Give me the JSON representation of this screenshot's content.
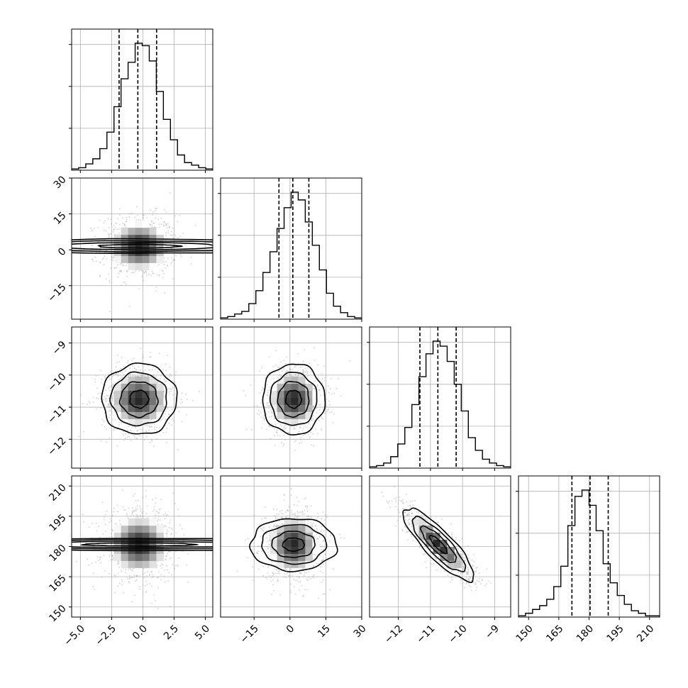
{
  "chart_data": {
    "type": "corner",
    "params": [
      {
        "hist": [
          1,
          2,
          5,
          9,
          17,
          30,
          50,
          72,
          85,
          100,
          98,
          86,
          62,
          40,
          24,
          12,
          6,
          4,
          2,
          1
        ],
        "quantiles": [
          -1.9,
          -0.4,
          1.1
        ],
        "range": [
          -5.7,
          5.6
        ],
        "ticks": [
          -5.0,
          -2.5,
          0.0,
          2.5,
          5.0
        ],
        "tick_labels": [
          "−5.0",
          "−2.5",
          "0.0",
          "2.5",
          "5.0"
        ],
        "mean": -0.3,
        "sd": 1.5
      },
      {
        "hist": [
          1,
          2,
          4,
          6,
          12,
          22,
          36,
          52,
          70,
          86,
          98,
          92,
          75,
          57,
          38,
          20,
          10,
          5,
          2,
          1
        ],
        "quantiles": [
          -4.6,
          1.2,
          7.9
        ],
        "range": [
          -29,
          30
        ],
        "ticks": [
          -15,
          0,
          15,
          30
        ],
        "tick_labels": [
          "−15",
          "0",
          "15",
          "30"
        ],
        "mean": 1.5,
        "sd": 6.5
      },
      {
        "hist": [
          1,
          2,
          4,
          9,
          19,
          32,
          50,
          72,
          90,
          100,
          96,
          84,
          66,
          45,
          24,
          14,
          7,
          4,
          2,
          1
        ],
        "quantiles": [
          -11.33,
          -10.77,
          -10.2
        ],
        "range": [
          -12.9,
          -8.5
        ],
        "ticks": [
          -12,
          -11,
          -10,
          -9
        ],
        "tick_labels": [
          "−12",
          "−11",
          "−10",
          "−9"
        ],
        "mean": -10.75,
        "sd": 0.55
      },
      {
        "hist": [
          1,
          3,
          6,
          9,
          14,
          24,
          40,
          72,
          95,
          100,
          88,
          68,
          42,
          27,
          17,
          10,
          5,
          3,
          1,
          1
        ],
        "quantiles": [
          171.5,
          180.5,
          189.5
        ],
        "range": [
          145,
          215
        ],
        "ticks": [
          150,
          165,
          180,
          195,
          210
        ],
        "tick_labels": [
          "150",
          "165",
          "180",
          "195",
          "210"
        ],
        "mean": 181,
        "sd": 9
      }
    ],
    "correlations": {
      "1-0": 0.0,
      "2-0": 0.0,
      "2-1": 0.0,
      "3-0": 0.0,
      "3-1": 0.0,
      "3-2": -0.85
    },
    "contour_levels_sigma": [
      0.5,
      1.0,
      1.5,
      2.0
    ],
    "colors": {
      "ink": "#000000",
      "grid": "#b0b0b0",
      "points": "#9a9a9a"
    }
  }
}
